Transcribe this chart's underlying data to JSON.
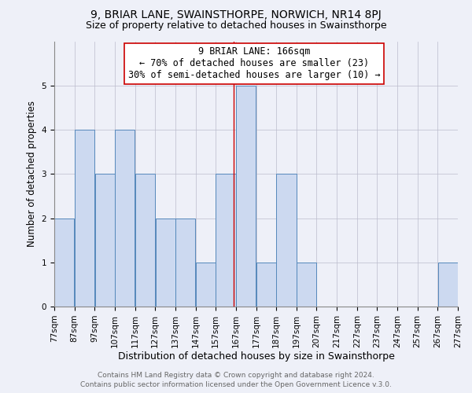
{
  "title": "9, BRIAR LANE, SWAINSTHORPE, NORWICH, NR14 8PJ",
  "subtitle": "Size of property relative to detached houses in Swainsthorpe",
  "xlabel": "Distribution of detached houses by size in Swainsthorpe",
  "ylabel": "Number of detached properties",
  "bin_edges": [
    77,
    87,
    97,
    107,
    117,
    127,
    137,
    147,
    157,
    167,
    177,
    187,
    197,
    207,
    217,
    227,
    237,
    247,
    257,
    267,
    277
  ],
  "counts": [
    2,
    4,
    3,
    4,
    3,
    2,
    2,
    1,
    3,
    5,
    1,
    3,
    1,
    0,
    0,
    0,
    0,
    0,
    0,
    1
  ],
  "bar_color": "#ccd9f0",
  "bar_edge_color": "#5588bb",
  "property_line_x": 166,
  "property_line_color": "#cc0000",
  "annotation_title": "9 BRIAR LANE: 166sqm",
  "annotation_line1": "← 70% of detached houses are smaller (23)",
  "annotation_line2": "30% of semi-detached houses are larger (10) →",
  "annotation_box_edge": "#cc0000",
  "ylim": [
    0,
    6
  ],
  "yticks": [
    0,
    1,
    2,
    3,
    4,
    5,
    6
  ],
  "footer_line1": "Contains HM Land Registry data © Crown copyright and database right 2024.",
  "footer_line2": "Contains public sector information licensed under the Open Government Licence v.3.0.",
  "title_fontsize": 10,
  "subtitle_fontsize": 9,
  "xlabel_fontsize": 9,
  "ylabel_fontsize": 8.5,
  "tick_fontsize": 7.5,
  "annotation_fontsize": 8.5,
  "footer_fontsize": 6.5,
  "background_color": "#eef0f8"
}
